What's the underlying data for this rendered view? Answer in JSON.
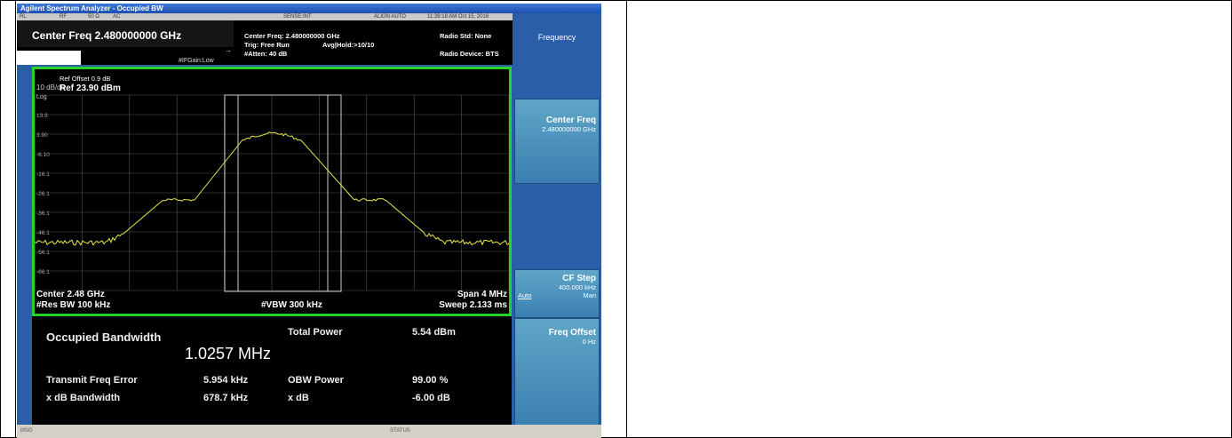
{
  "window": {
    "title": "Agilent Spectrum Analyzer - Occupied BW"
  },
  "status_strip": {
    "rl": "RL",
    "rf": "RF",
    "ohm": "50 Ω",
    "ac": "AC",
    "sense": "SENSE:INT",
    "align": "ALIGN AUTO",
    "timestamp": "11:39:18 AM Oct 15, 2016"
  },
  "header": {
    "center_freq_title": "Center Freq 2.480000000 GHz",
    "ifgain": "#IFGain:Low",
    "center_freq": "Center Freq: 2.480000000 GHz",
    "trig": "Trig: Free Run",
    "avg_hold": "Avg|Hold:>10/10",
    "atten": "#Atten: 40 dB",
    "radio_std": "Radio Std: None",
    "radio_device": "Radio Device: BTS"
  },
  "graticule": {
    "ref_offset": "Ref Offset 0.9 dB",
    "ref_level": "Ref 23.90 dBm",
    "scale": "10 dB/div",
    "log": "Log",
    "y_ticks": [
      "13.9",
      "3.90",
      "-6.10",
      "-16.1",
      "-26.1",
      "-36.1",
      "-46.1",
      "-56.1",
      "-66.1"
    ],
    "center": "Center 2.48 GHz",
    "span": "Span 4 MHz",
    "res_bw": "#Res BW 100 kHz",
    "vbw": "#VBW 300 kHz",
    "sweep": "Sweep 2.133 ms"
  },
  "results": {
    "occupied_bw_label": "Occupied Bandwidth",
    "occupied_bw_value": "1.0257 MHz",
    "total_power_label": "Total Power",
    "total_power_value": "5.54 dBm",
    "transmit_freq_error_label": "Transmit Freq Error",
    "transmit_freq_error_value": "5.954 kHz",
    "obw_power_label": "OBW Power",
    "obw_power_value": "99.00 %",
    "xdb_bw_label": "x dB Bandwidth",
    "xdb_bw_value": "678.7 kHz",
    "xdb_label": "x dB",
    "xdb_value": "-6.00 dB"
  },
  "softkeys": {
    "menu_title": "Frequency",
    "center_freq_label": "Center Freq",
    "center_freq_value": "2.480000000 GHz",
    "cf_step_label": "CF Step",
    "cf_step_value": "400.000 kHz",
    "cf_step_auto": "Auto",
    "cf_step_man": "Man",
    "freq_offset_label": "Freq Offset",
    "freq_offset_value": "0 Hz"
  },
  "statusbar": {
    "msg": "MSG",
    "status": "STATUS"
  },
  "colors": {
    "trace": "#e8e84a",
    "graticule_border": "#28d228",
    "softkey": "#4b90bd"
  }
}
